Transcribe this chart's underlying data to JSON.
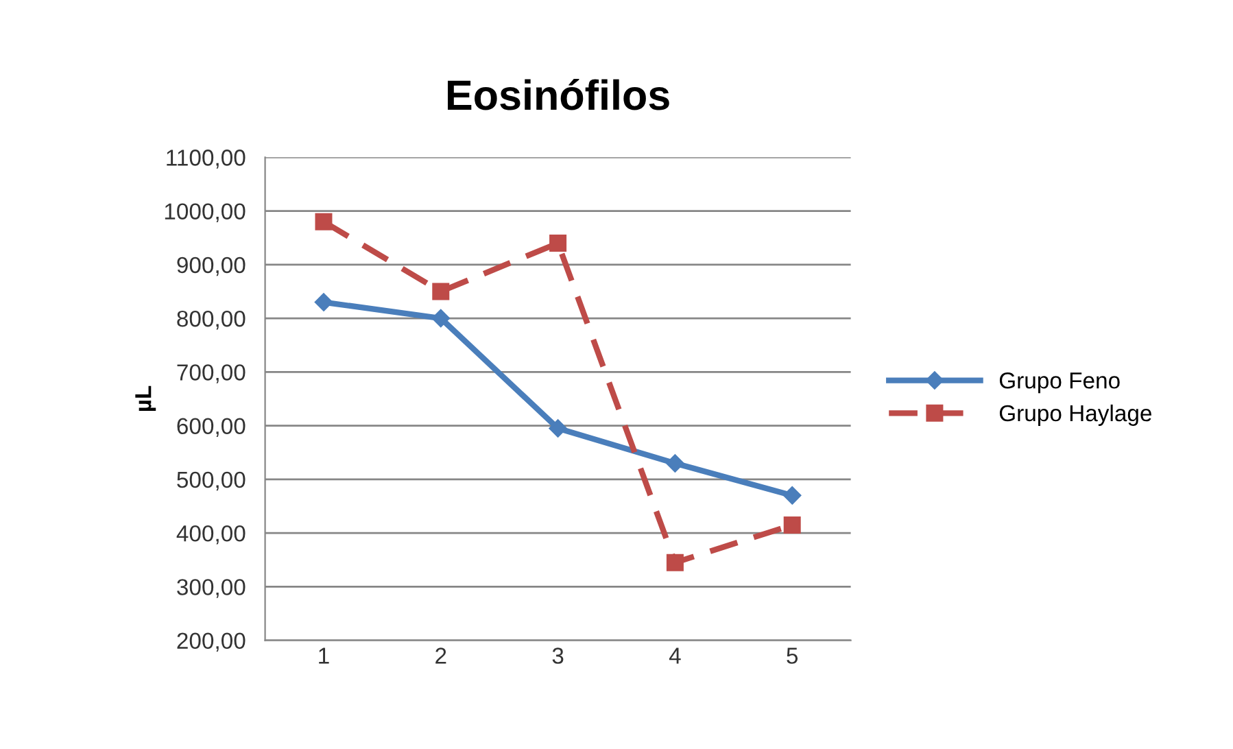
{
  "chart_data": {
    "type": "line",
    "title": "Eosinófilos",
    "ylabel": "µL",
    "categories": [
      "1",
      "2",
      "3",
      "4",
      "5"
    ],
    "series": [
      {
        "name": "Grupo Feno",
        "color": "#4a7ebb",
        "values": [
          830,
          800,
          595,
          530,
          470
        ],
        "marker": "diamond",
        "line_style": "solid"
      },
      {
        "name": "Grupo Haylage",
        "color": "#be4b48",
        "values": [
          980,
          850,
          940,
          345,
          415
        ],
        "marker": "square",
        "line_style": "dashed"
      }
    ],
    "ylim": [
      200,
      1100
    ],
    "yticks": [
      {
        "value": 200,
        "label": "200,00"
      },
      {
        "value": 300,
        "label": "300,00"
      },
      {
        "value": 400,
        "label": "400,00"
      },
      {
        "value": 500,
        "label": "500,00"
      },
      {
        "value": 600,
        "label": "600,00"
      },
      {
        "value": 700,
        "label": "700,00"
      },
      {
        "value": 800,
        "label": "800,00"
      },
      {
        "value": 900,
        "label": "900,00"
      },
      {
        "value": 1000,
        "label": "1000,00"
      },
      {
        "value": 1100,
        "label": "1100,00"
      }
    ],
    "grid": "y",
    "legend": "right"
  }
}
